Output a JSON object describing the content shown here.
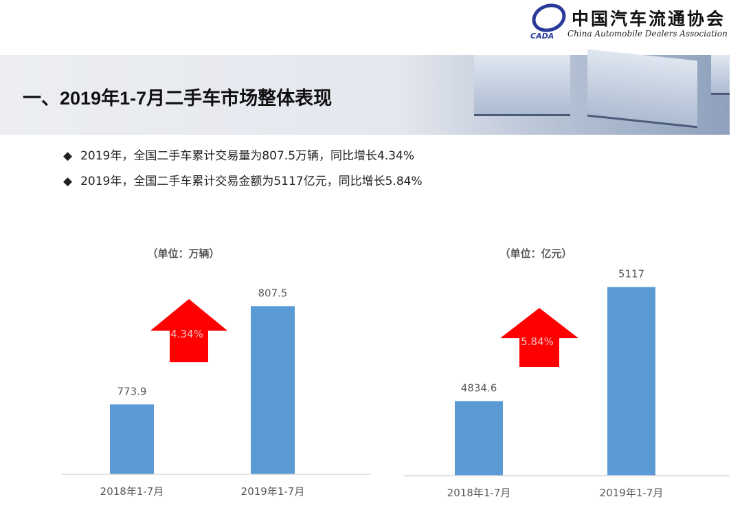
{
  "logo": {
    "name_cn": "中国汽车流通协会",
    "name_en": "China Automobile Dealers Association",
    "abbr": "CADA"
  },
  "header": {
    "title": "一、2019年1-7月二手车市场整体表现"
  },
  "bullets": [
    {
      "icon": "diamond-icon",
      "text": "2019年，全国二手车累计交易量为807.5万辆，同比增长4.34%"
    },
    {
      "icon": "diamond-icon",
      "text": "2019年，全国二手车累计交易金额为5117亿元，同比增长5.84%"
    }
  ],
  "colors": {
    "bar": "#5b9bd5",
    "arrow": "#ff0000"
  },
  "chart_data": [
    {
      "type": "bar",
      "unit_label": "（单位：万辆）",
      "categories": [
        "2018年1-7月",
        "2019年1-7月"
      ],
      "values": [
        773.9,
        807.5
      ],
      "data_labels": [
        "773.9",
        "807.5"
      ],
      "ylim": [
        750,
        840
      ],
      "grid": false,
      "annotation": {
        "shape": "up-arrow",
        "text": "4.34%"
      }
    },
    {
      "type": "bar",
      "unit_label": "（单位：亿元）",
      "categories": [
        "2018年1-7月",
        "2019年1-7月"
      ],
      "values": [
        4834.6,
        5117
      ],
      "data_labels": [
        "4834.6",
        "5117"
      ],
      "ylim": [
        4650,
        5300
      ],
      "grid": false,
      "annotation": {
        "shape": "up-arrow",
        "text": "5.84%"
      }
    }
  ]
}
